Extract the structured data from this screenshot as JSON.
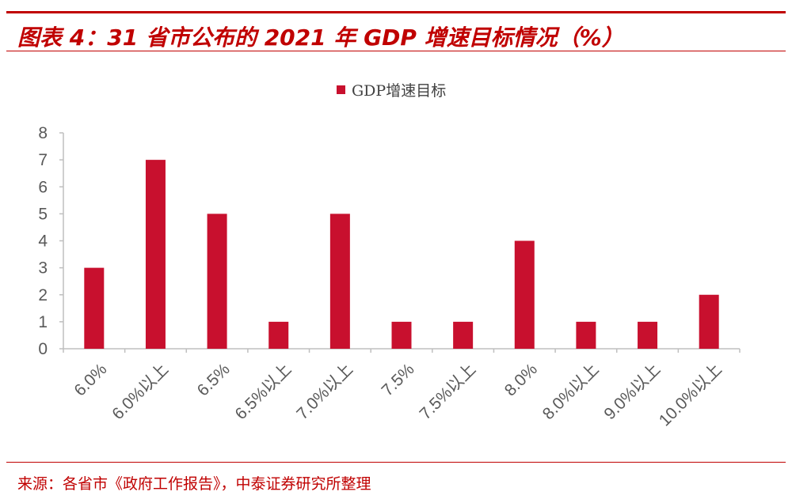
{
  "header": {
    "title": "图表 4：31 省市公布的 2021 年 GDP 增速目标情况（%）"
  },
  "footer": {
    "source": "来源：各省市《政府工作报告》，中泰证券研究所整理"
  },
  "colors": {
    "accent": "#c00000",
    "bar": "#c8102e",
    "axis": "#bfbfbf",
    "tick_text": "#595959"
  },
  "chart_data": {
    "type": "bar",
    "categories": [
      "6.0%",
      "6.0%以上",
      "6.5%",
      "6.5%以上",
      "7.0%以上",
      "7.5%",
      "7.5%以上",
      "8.0%",
      "8.0%以上",
      "9.0%以上",
      "10.0%以上"
    ],
    "series": [
      {
        "name": "GDP增速目标",
        "values": [
          3,
          7,
          5,
          1,
          5,
          1,
          1,
          4,
          1,
          1,
          2
        ]
      }
    ],
    "ylim": [
      0,
      8
    ],
    "yticks": [
      0,
      1,
      2,
      3,
      4,
      5,
      6,
      7,
      8
    ],
    "legend_position": "top-center",
    "grid": false
  }
}
